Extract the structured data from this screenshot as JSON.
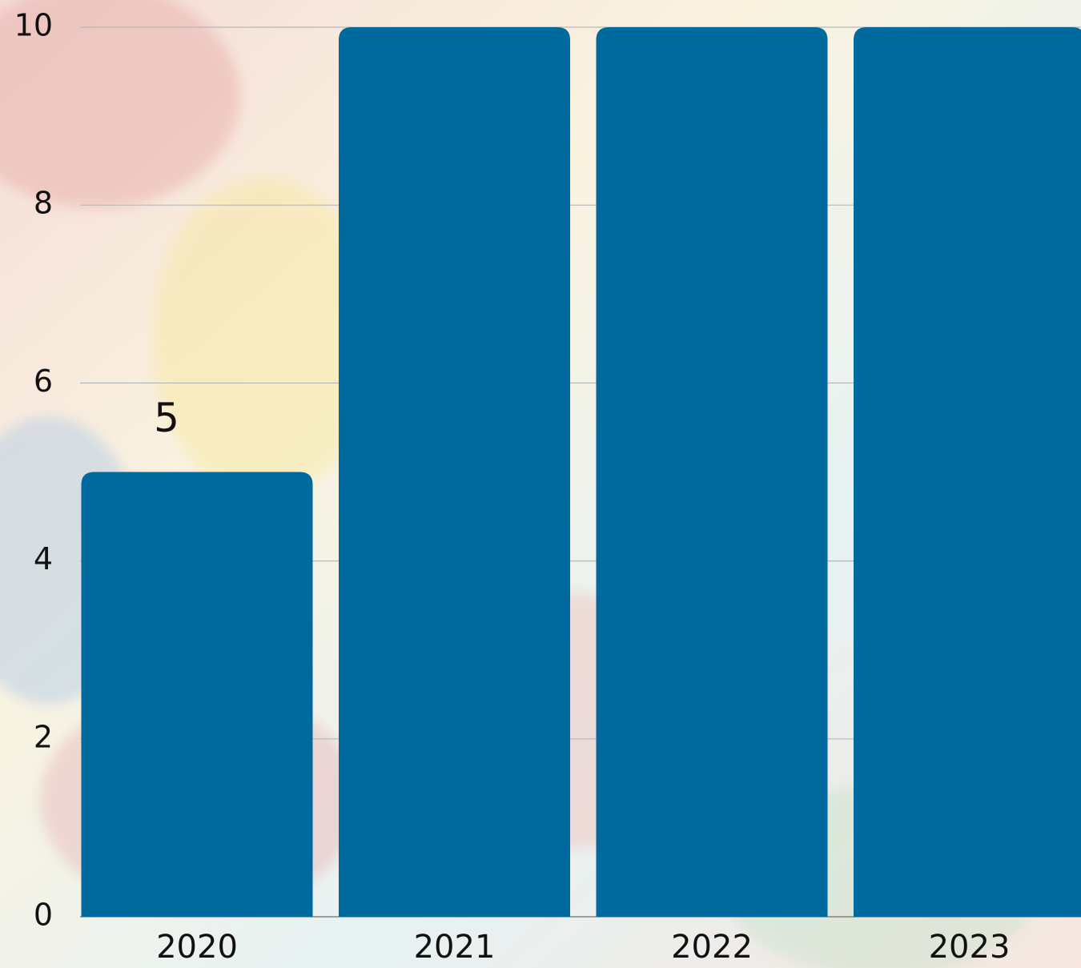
{
  "chart_data": {
    "type": "bar",
    "categories": [
      "2020",
      "2021",
      "2022",
      "2023"
    ],
    "values": [
      5,
      10,
      10,
      10
    ],
    "value_labels": [
      "5",
      null,
      null,
      null
    ],
    "color": "#00699d",
    "ylim": [
      0,
      10
    ],
    "yticks": [
      0,
      2,
      4,
      6,
      8,
      10
    ],
    "grid": true
  }
}
